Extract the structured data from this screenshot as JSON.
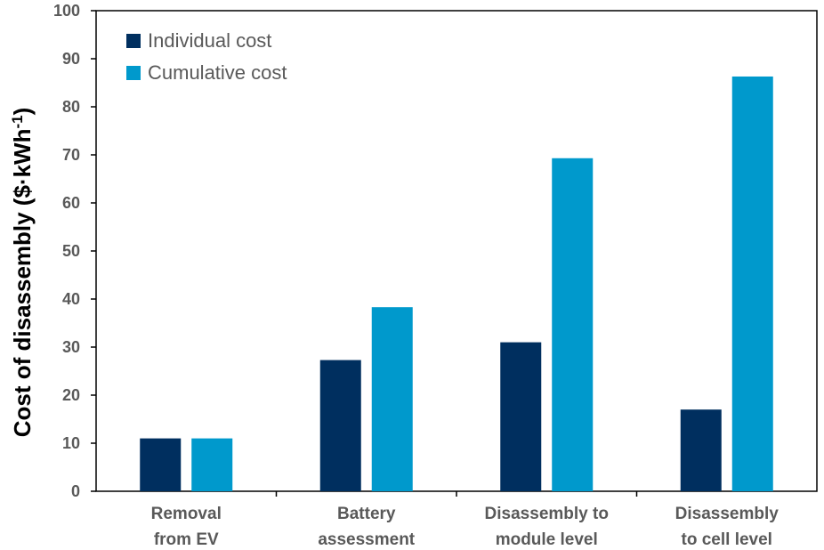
{
  "chart_data": {
    "type": "bar",
    "title": "",
    "xlabel": "",
    "ylabel": "Cost of disassembly ($·kWh",
    "ylabel_superscript": "-1",
    "ylabel_close": ")",
    "ylim": [
      0,
      100
    ],
    "yticks": [
      0,
      10,
      20,
      30,
      40,
      50,
      60,
      70,
      80,
      90,
      100
    ],
    "categories": [
      [
        "Removal",
        "from EV"
      ],
      [
        "Battery",
        "assessment"
      ],
      [
        "Disassembly to",
        "module level"
      ],
      [
        "Disassembly",
        "to cell level"
      ]
    ],
    "series": [
      {
        "name": "Individual cost",
        "color": "#002F5F",
        "values": [
          11,
          27.3,
          31,
          17
        ]
      },
      {
        "name": "Cumulative cost",
        "color": "#0099CC",
        "values": [
          11,
          38.3,
          69.3,
          86.3
        ]
      }
    ],
    "legend_position": "top-left",
    "grid": false
  }
}
